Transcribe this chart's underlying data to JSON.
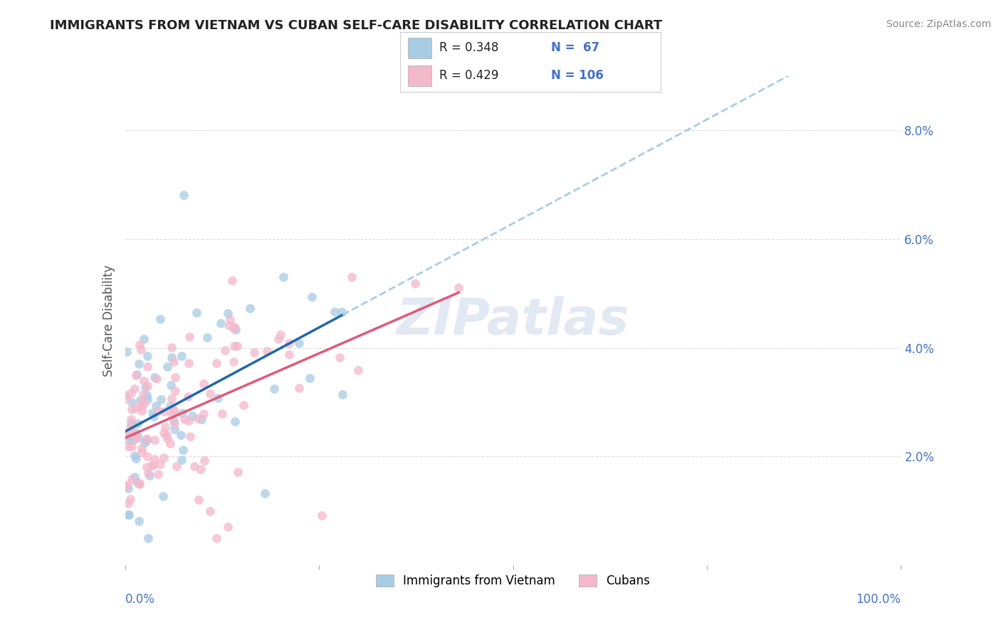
{
  "title": "IMMIGRANTS FROM VIETNAM VS CUBAN SELF-CARE DISABILITY CORRELATION CHART",
  "source": "Source: ZipAtlas.com",
  "ylabel": "Self-Care Disability",
  "legend_label1": "Immigrants from Vietnam",
  "legend_label2": "Cubans",
  "R1": 0.348,
  "N1": 67,
  "R2": 0.429,
  "N2": 106,
  "color_blue": "#a8cce4",
  "color_pink": "#f4b8cb",
  "color_blue_line": "#2166ac",
  "color_pink_line": "#e05a7a",
  "color_blue_dashed": "#aacce4",
  "ytick_labels": [
    "2.0%",
    "4.0%",
    "6.0%",
    "8.0%"
  ],
  "ytick_values": [
    0.02,
    0.04,
    0.06,
    0.08
  ],
  "background_color": "#ffffff",
  "watermark": "ZIPatlas",
  "tick_color": "#4472c4"
}
